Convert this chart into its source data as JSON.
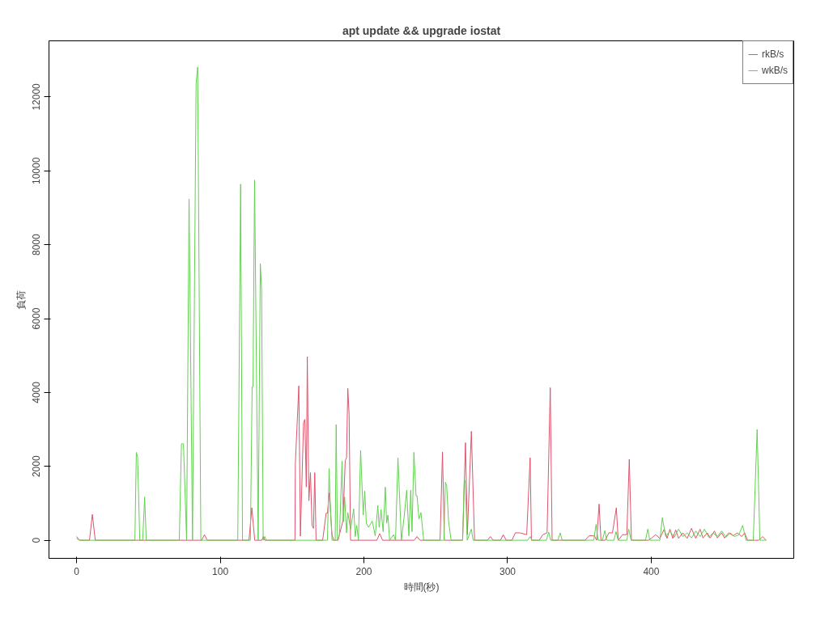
{
  "chart_data": {
    "type": "line",
    "title": "apt update && upgrade iostat",
    "xlabel": "時間(秒)",
    "ylabel": "負荷",
    "xlim": [
      -19.2,
      499.2
    ],
    "ylim": [
      -490,
      13520
    ],
    "xticks": [
      0,
      100,
      200,
      300,
      400
    ],
    "yticks": [
      0,
      2000,
      4000,
      6000,
      8000,
      10000,
      12000
    ],
    "grid": false,
    "legend": "top right",
    "marker": "none",
    "line_style": "solid",
    "series": [
      {
        "name": "rkB/s",
        "color": "#df536b",
        "x": [
          0,
          2,
          9,
          11,
          13,
          87,
          89,
          91,
          120,
          122,
          124,
          129,
          130,
          131,
          152,
          152.3,
          154.7,
          155.8,
          158,
          158.9,
          159.9,
          160.6,
          161.7,
          162.8,
          163.9,
          164.9,
          165.8,
          166.7,
          171.3,
          173.7,
          174.6,
          175.9,
          177.8,
          179,
          182,
          185.5,
          187,
          187.9,
          188.8,
          189.7,
          190.7,
          209,
          211,
          213,
          235,
          237,
          239,
          253,
          254.7,
          256,
          268.7,
          270.7,
          272,
          274.8,
          277,
          286,
          288,
          290,
          295,
          297,
          299,
          303,
          305.4,
          308.7,
          313.3,
          315.7,
          316.6,
          322,
          324.5,
          327.5,
          329.7,
          331,
          354,
          356.7,
          360.4,
          362,
          363.7,
          365,
          368,
          370.5,
          373,
          375.7,
          377,
          380,
          383,
          384.7,
          386.2,
          398,
          400,
          403,
          406,
          409,
          411,
          413,
          415,
          417,
          419,
          422,
          425,
          428,
          431,
          434,
          436,
          439,
          441,
          444,
          446,
          449,
          451,
          454,
          457,
          460,
          463,
          465,
          467,
          475,
          477.5,
          480
        ],
        "values": [
          100,
          0,
          0,
          700,
          0,
          0,
          150,
          0,
          0,
          880,
          0,
          0,
          100,
          0,
          0,
          2085,
          4180,
          110,
          3190,
          3270,
          1440,
          4970,
          1070,
          1830,
          400,
          320,
          1830,
          0,
          0,
          730,
          730,
          1280,
          150,
          0,
          0,
          540,
          2160,
          2230,
          4110,
          3410,
          0,
          0,
          180,
          0,
          0,
          100,
          0,
          0,
          2390,
          0,
          0,
          2640,
          150,
          2950,
          0,
          0,
          100,
          0,
          0,
          150,
          0,
          0,
          200,
          200,
          150,
          2230,
          0,
          0,
          150,
          200,
          4130,
          0,
          0,
          120,
          120,
          0,
          980,
          0,
          0,
          200,
          200,
          880,
          0,
          150,
          150,
          2190,
          0,
          0,
          50,
          150,
          50,
          300,
          50,
          300,
          50,
          280,
          50,
          200,
          50,
          320,
          50,
          300,
          60,
          200,
          60,
          250,
          60,
          200,
          60,
          200,
          120,
          200,
          100,
          200,
          0,
          0,
          100,
          0
        ]
      },
      {
        "name": "wkB/s",
        "color": "#61d04f",
        "x": [
          0,
          2,
          40.6,
          41.6,
          42.5,
          44,
          46,
          47.4,
          48.5,
          71.5,
          73,
          74.4,
          76.6,
          78.3,
          80.7,
          83.2,
          84.3,
          86.5,
          112.2,
          114.2,
          115.5,
          121,
          122.2,
          122.8,
          123.9,
          126.4,
          127.9,
          128.8,
          129.9,
          131,
          132,
          174.6,
          175.8,
          176.5,
          177.8,
          180,
          180.7,
          181.6,
          183,
          184.8,
          185.7,
          186.6,
          187.9,
          188.8,
          190.7,
          192.9,
          194,
          195,
          196.2,
          197.7,
          199.5,
          200.6,
          201.7,
          203.2,
          205.8,
          207.9,
          209.7,
          210.6,
          211.9,
          213.4,
          214.9,
          215.8,
          216.7,
          217.9,
          220.6,
          222,
          223.7,
          226.1,
          227.9,
          229.8,
          231.3,
          232.6,
          233.5,
          234.8,
          236.3,
          237,
          238.3,
          239.7,
          241.6,
          255.7,
          256.7,
          257.6,
          258.9,
          260.7,
          268.7,
          269.8,
          270.6,
          271.9,
          274.8,
          276,
          314,
          315.7,
          317,
          327,
          328.6,
          330,
          335,
          336.6,
          338,
          360,
          361.6,
          363,
          366,
          367.7,
          369,
          374,
          375.5,
          377,
          383,
          384.3,
          386,
          396,
          397.6,
          399,
          406,
          407.7,
          410,
          413,
          416,
          419,
          422,
          425,
          428,
          431,
          434,
          437,
          440,
          443,
          446,
          449,
          452,
          455,
          458,
          461,
          463.6,
          466,
          471,
          473.7,
          475.6,
          480
        ],
        "values": [
          50,
          0,
          0,
          2380,
          2250,
          0,
          0,
          1170,
          0,
          0,
          2610,
          2610,
          0,
          9240,
          0,
          12350,
          12810,
          0,
          0,
          9640,
          0,
          0,
          4160,
          4160,
          9750,
          0,
          7490,
          6780,
          0,
          100,
          0,
          0,
          1940,
          1050,
          0,
          0,
          3130,
          0,
          150,
          2140,
          500,
          1170,
          200,
          750,
          300,
          850,
          100,
          400,
          0,
          2430,
          680,
          1330,
          460,
          350,
          520,
          120,
          940,
          350,
          830,
          230,
          1440,
          460,
          680,
          0,
          150,
          0,
          2230,
          0,
          600,
          1360,
          120,
          1360,
          230,
          2380,
          1200,
          1200,
          570,
          750,
          0,
          0,
          1570,
          1480,
          520,
          0,
          0,
          1610,
          1610,
          0,
          300,
          0,
          0,
          100,
          0,
          0,
          220,
          0,
          0,
          200,
          0,
          0,
          430,
          0,
          0,
          260,
          0,
          0,
          230,
          0,
          0,
          300,
          0,
          0,
          300,
          0,
          0,
          610,
          100,
          250,
          80,
          300,
          100,
          200,
          60,
          250,
          100,
          300,
          80,
          200,
          100,
          250,
          80,
          200,
          100,
          150,
          400,
          0,
          0,
          3000,
          0,
          0
        ]
      }
    ]
  }
}
